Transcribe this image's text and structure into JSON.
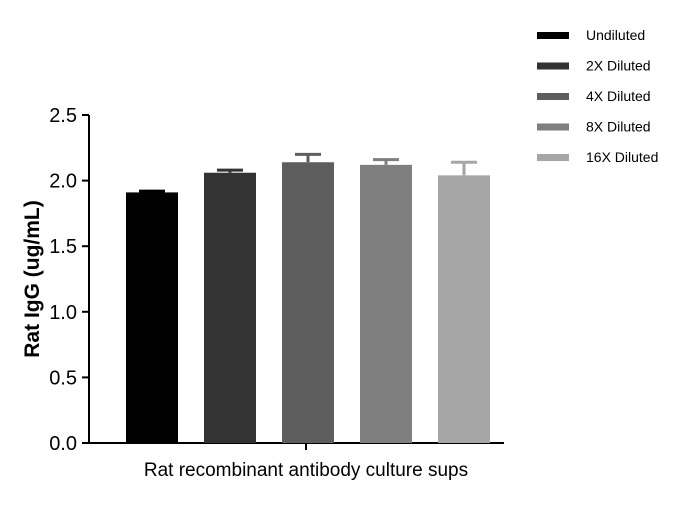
{
  "chart_data": {
    "type": "bar",
    "title": "",
    "xlabel": "Rat recombinant antibody culture sups",
    "ylabel": "Rat IgG (ug/mL)",
    "ylim": [
      0,
      2.5
    ],
    "yticks": [
      "0.0",
      "0.5",
      "1.0",
      "1.5",
      "2.0",
      "2.5"
    ],
    "grid": false,
    "legend_position": "top-right",
    "categories": [
      "Undiluted",
      "2X Diluted",
      "4X Diluted",
      "8X Diluted",
      "16X Diluted"
    ],
    "values": [
      1.91,
      2.06,
      2.14,
      2.12,
      2.04
    ],
    "errors": [
      0.01,
      0.02,
      0.06,
      0.04,
      0.1
    ],
    "colors": [
      "#000000",
      "#333333",
      "#5e5e5e",
      "#7f7f7f",
      "#a6a6a6"
    ]
  }
}
